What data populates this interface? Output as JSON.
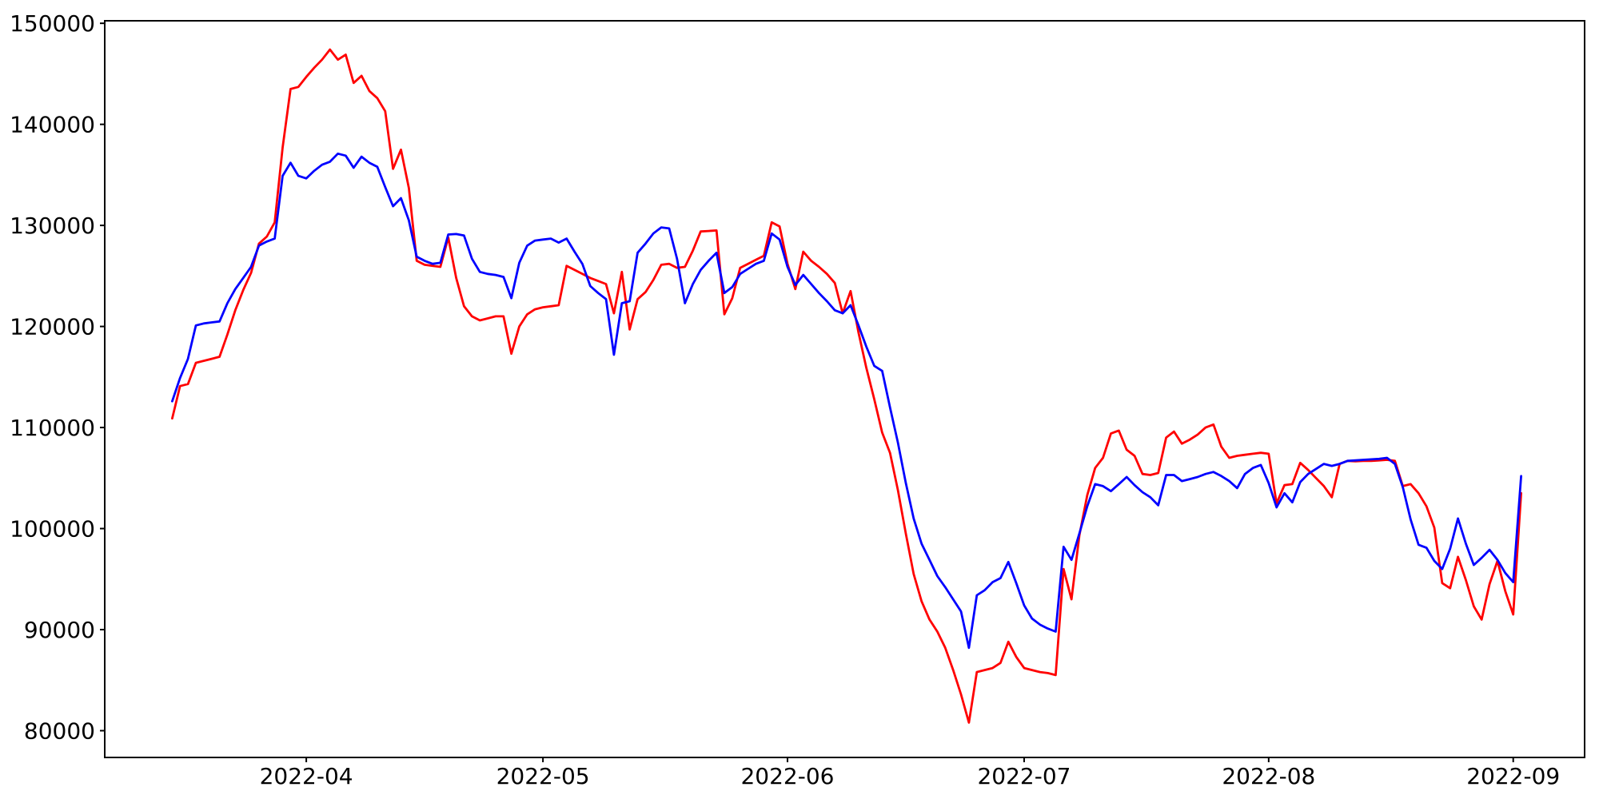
{
  "figure": {
    "background_color": "#ffffff",
    "title": "",
    "legend": null
  },
  "chart_data": {
    "type": "line",
    "title": "",
    "xlabel": "",
    "ylabel": "",
    "grid": false,
    "x_start_date": "2022-03-15",
    "x_step_days": 1,
    "num_points": 172,
    "xlim_days_from_start": [
      -8.55,
      179.05
    ],
    "ylim": [
      77350,
      150250
    ],
    "xticks": [
      {
        "label": "2022-04",
        "day": 17
      },
      {
        "label": "2022-05",
        "day": 47
      },
      {
        "label": "2022-06",
        "day": 78
      },
      {
        "label": "2022-07",
        "day": 108
      },
      {
        "label": "2022-08",
        "day": 139
      },
      {
        "label": "2022-09",
        "day": 170
      }
    ],
    "yticks": [
      {
        "label": "80000",
        "value": 80000
      },
      {
        "label": "90000",
        "value": 90000
      },
      {
        "label": "100000",
        "value": 100000
      },
      {
        "label": "110000",
        "value": 110000
      },
      {
        "label": "120000",
        "value": 120000
      },
      {
        "label": "130000",
        "value": 130000
      },
      {
        "label": "140000",
        "value": 140000
      },
      {
        "label": "150000",
        "value": 150000
      }
    ],
    "series": [
      {
        "name": "red-series",
        "color": "#ff0000",
        "line_width": 2.8,
        "values": [
          110900,
          114100,
          114300,
          116400,
          116600,
          116800,
          117000,
          119200,
          121600,
          123600,
          125300,
          128200,
          128900,
          130300,
          137700,
          143500,
          143700,
          144700,
          145600,
          146400,
          147400,
          146400,
          146900,
          144100,
          144800,
          143300,
          142600,
          141300,
          135600,
          137500,
          133700,
          126500,
          126100,
          126000,
          125900,
          128800,
          124800,
          122000,
          121000,
          120600,
          120800,
          121000,
          121000,
          117300,
          120000,
          121200,
          121700,
          121900,
          122000,
          122100,
          126000,
          125600,
          125200,
          124800,
          124500,
          124200,
          121300,
          125400,
          119700,
          122700,
          123400,
          124600,
          126100,
          126200,
          125800,
          125900,
          127500,
          129400,
          129450,
          129500,
          121200,
          122800,
          125800,
          126200,
          126600,
          127000,
          130300,
          129900,
          126200,
          123700,
          127400,
          126500,
          125900,
          125200,
          124300,
          121300,
          123500,
          119400,
          115900,
          112800,
          109500,
          107500,
          103800,
          99500,
          95500,
          92800,
          91000,
          89800,
          88200,
          86000,
          83600,
          80800,
          85800,
          86000,
          86200,
          86700,
          88800,
          87300,
          86200,
          86000,
          85800,
          85700,
          85500,
          96000,
          93000,
          99300,
          103300,
          106000,
          107000,
          109400,
          109700,
          107800,
          107200,
          105400,
          105300,
          105500,
          109000,
          109600,
          108400,
          108800,
          109300,
          110000,
          110300,
          108100,
          107000,
          107200,
          107300,
          107400,
          107500,
          107400,
          102500,
          104300,
          104400,
          106500,
          105800,
          105000,
          104200,
          103100,
          106400,
          106700,
          106650,
          106700,
          106700,
          106750,
          106800,
          106700,
          104200,
          104400,
          103500,
          102200,
          100100,
          94600,
          94100,
          97200,
          94900,
          92300,
          91000,
          94500,
          96800,
          93800,
          91500,
          103500
        ]
      },
      {
        "name": "blue-series",
        "color": "#0000ff",
        "line_width": 2.8,
        "values": [
          112600,
          114900,
          116800,
          120100,
          120300,
          120400,
          120500,
          122300,
          123700,
          124800,
          125900,
          128000,
          128400,
          128700,
          134900,
          136200,
          134900,
          134650,
          135400,
          136000,
          136300,
          137100,
          136900,
          135700,
          136800,
          136200,
          135800,
          133800,
          131900,
          132700,
          130500,
          126900,
          126500,
          126200,
          126300,
          129100,
          129150,
          129000,
          126700,
          125400,
          125200,
          125100,
          124900,
          122800,
          126300,
          128000,
          128500,
          128600,
          128700,
          128300,
          128700,
          127400,
          126200,
          124000,
          123300,
          122700,
          117200,
          122300,
          122500,
          127300,
          128200,
          129200,
          129800,
          129700,
          126700,
          122300,
          124200,
          125600,
          126500,
          127300,
          123300,
          123900,
          125200,
          125700,
          126200,
          126500,
          129200,
          128600,
          125900,
          124100,
          125100,
          124200,
          123300,
          122500,
          121600,
          121300,
          122100,
          120100,
          118000,
          116100,
          115600,
          112000,
          108500,
          104500,
          101000,
          98500,
          96900,
          95300,
          94200,
          93000,
          91800,
          88200,
          93400,
          93900,
          94700,
          95100,
          96700,
          94600,
          92400,
          91100,
          90500,
          90100,
          89800,
          98200,
          96900,
          99500,
          102200,
          104400,
          104200,
          103700,
          104400,
          105100,
          104300,
          103600,
          103100,
          102300,
          105300,
          105300,
          104700,
          104900,
          105100,
          105400,
          105600,
          105200,
          104700,
          104000,
          105400,
          106000,
          106300,
          104500,
          102100,
          103500,
          102600,
          104600,
          105400,
          105900,
          106400,
          106200,
          106400,
          106700,
          106750,
          106800,
          106850,
          106900,
          107000,
          106400,
          104100,
          100900,
          98400,
          98100,
          96800,
          96000,
          98000,
          101000,
          98500,
          96400,
          97100,
          97900,
          96900,
          95600,
          94700,
          105200
        ]
      }
    ],
    "axes_style": {
      "spine_color": "#000000",
      "spine_width": 2,
      "tick_length": 6,
      "tick_width": 2,
      "tick_direction": "out",
      "tick_label_color": "#000000",
      "tick_label_font_size_px": 28
    }
  }
}
